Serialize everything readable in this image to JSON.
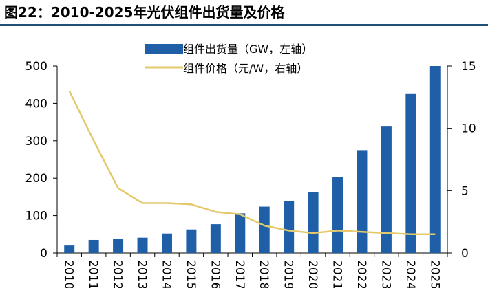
{
  "figure": {
    "title": "图22：2010-2025年光伏组件出货量及价格"
  },
  "chart_data": {
    "type": "bar+line",
    "title": "图22：2010-2025年光伏组件出货量及价格",
    "categories": [
      "2010",
      "2011",
      "2012",
      "2013",
      "2014",
      "2015",
      "2016",
      "2017",
      "2018",
      "2019",
      "2020",
      "2021",
      "2022",
      "2023",
      "2024",
      "2025"
    ],
    "series": [
      {
        "name": "组件出货量（GW，左轴）",
        "type": "bar",
        "axis": "left",
        "color": "#1f5fa8",
        "values": [
          20,
          35,
          37,
          41,
          52,
          63,
          77,
          106,
          124,
          138,
          163,
          203,
          275,
          338,
          425,
          500
        ]
      },
      {
        "name": "组件价格（元/W，右轴）",
        "type": "line",
        "axis": "right",
        "color": "#e3c96b",
        "values": [
          13.0,
          9.0,
          5.2,
          4.0,
          4.0,
          3.9,
          3.3,
          3.1,
          2.2,
          1.8,
          1.6,
          1.8,
          1.7,
          1.6,
          1.5,
          1.5
        ]
      }
    ],
    "left_axis": {
      "min": 0,
      "max": 500,
      "ticks": [
        0,
        100,
        200,
        300,
        400,
        500
      ]
    },
    "right_axis": {
      "min": 0,
      "max": 15,
      "ticks": [
        0,
        5,
        10,
        15
      ]
    },
    "legend_position": "top-center"
  }
}
